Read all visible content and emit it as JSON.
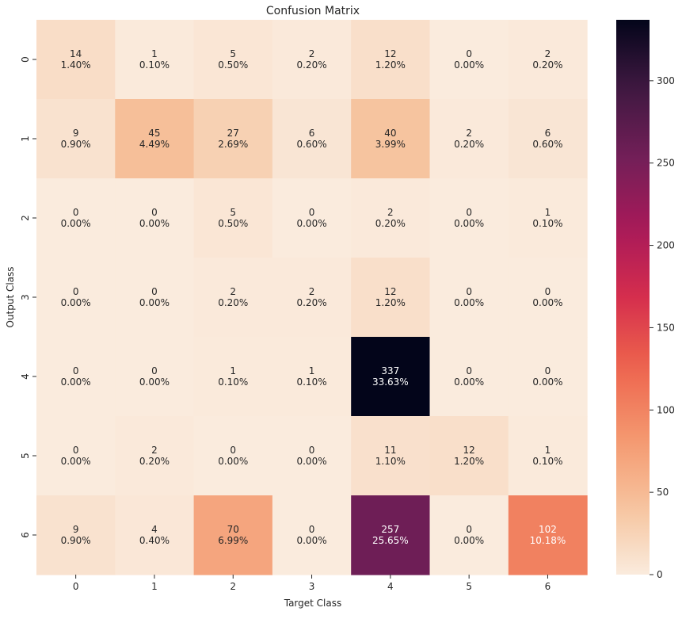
{
  "chart_data": {
    "type": "heatmap",
    "title": "Confusion Matrix",
    "xlabel": "Target Class",
    "ylabel": "Output Class",
    "x_categories": [
      "0",
      "1",
      "2",
      "3",
      "4",
      "5",
      "6"
    ],
    "y_categories": [
      "0",
      "1",
      "2",
      "3",
      "4",
      "5",
      "6"
    ],
    "values": [
      [
        14,
        1,
        5,
        2,
        12,
        0,
        2
      ],
      [
        9,
        45,
        27,
        6,
        40,
        2,
        6
      ],
      [
        0,
        0,
        5,
        0,
        2,
        0,
        1
      ],
      [
        0,
        0,
        2,
        2,
        12,
        0,
        0
      ],
      [
        0,
        0,
        1,
        1,
        337,
        0,
        0
      ],
      [
        0,
        2,
        0,
        0,
        11,
        12,
        1
      ],
      [
        9,
        4,
        70,
        0,
        257,
        0,
        102
      ]
    ],
    "percentages": [
      [
        "1.40%",
        "0.10%",
        "0.50%",
        "0.20%",
        "1.20%",
        "0.00%",
        "0.20%"
      ],
      [
        "0.90%",
        "4.49%",
        "2.69%",
        "0.60%",
        "3.99%",
        "0.20%",
        "0.60%"
      ],
      [
        "0.00%",
        "0.00%",
        "0.50%",
        "0.00%",
        "0.20%",
        "0.00%",
        "0.10%"
      ],
      [
        "0.00%",
        "0.00%",
        "0.20%",
        "0.20%",
        "1.20%",
        "0.00%",
        "0.00%"
      ],
      [
        "0.00%",
        "0.00%",
        "0.10%",
        "0.10%",
        "33.63%",
        "0.00%",
        "0.00%"
      ],
      [
        "0.00%",
        "0.20%",
        "0.00%",
        "0.00%",
        "1.10%",
        "1.20%",
        "0.10%"
      ],
      [
        "0.90%",
        "0.40%",
        "6.99%",
        "0.00%",
        "25.65%",
        "0.00%",
        "10.18%"
      ]
    ],
    "colorbar": {
      "range": [
        0,
        337
      ],
      "ticks": [
        0,
        50,
        100,
        150,
        200,
        250,
        300
      ],
      "colormap": "rocket_r"
    },
    "grid": false
  }
}
